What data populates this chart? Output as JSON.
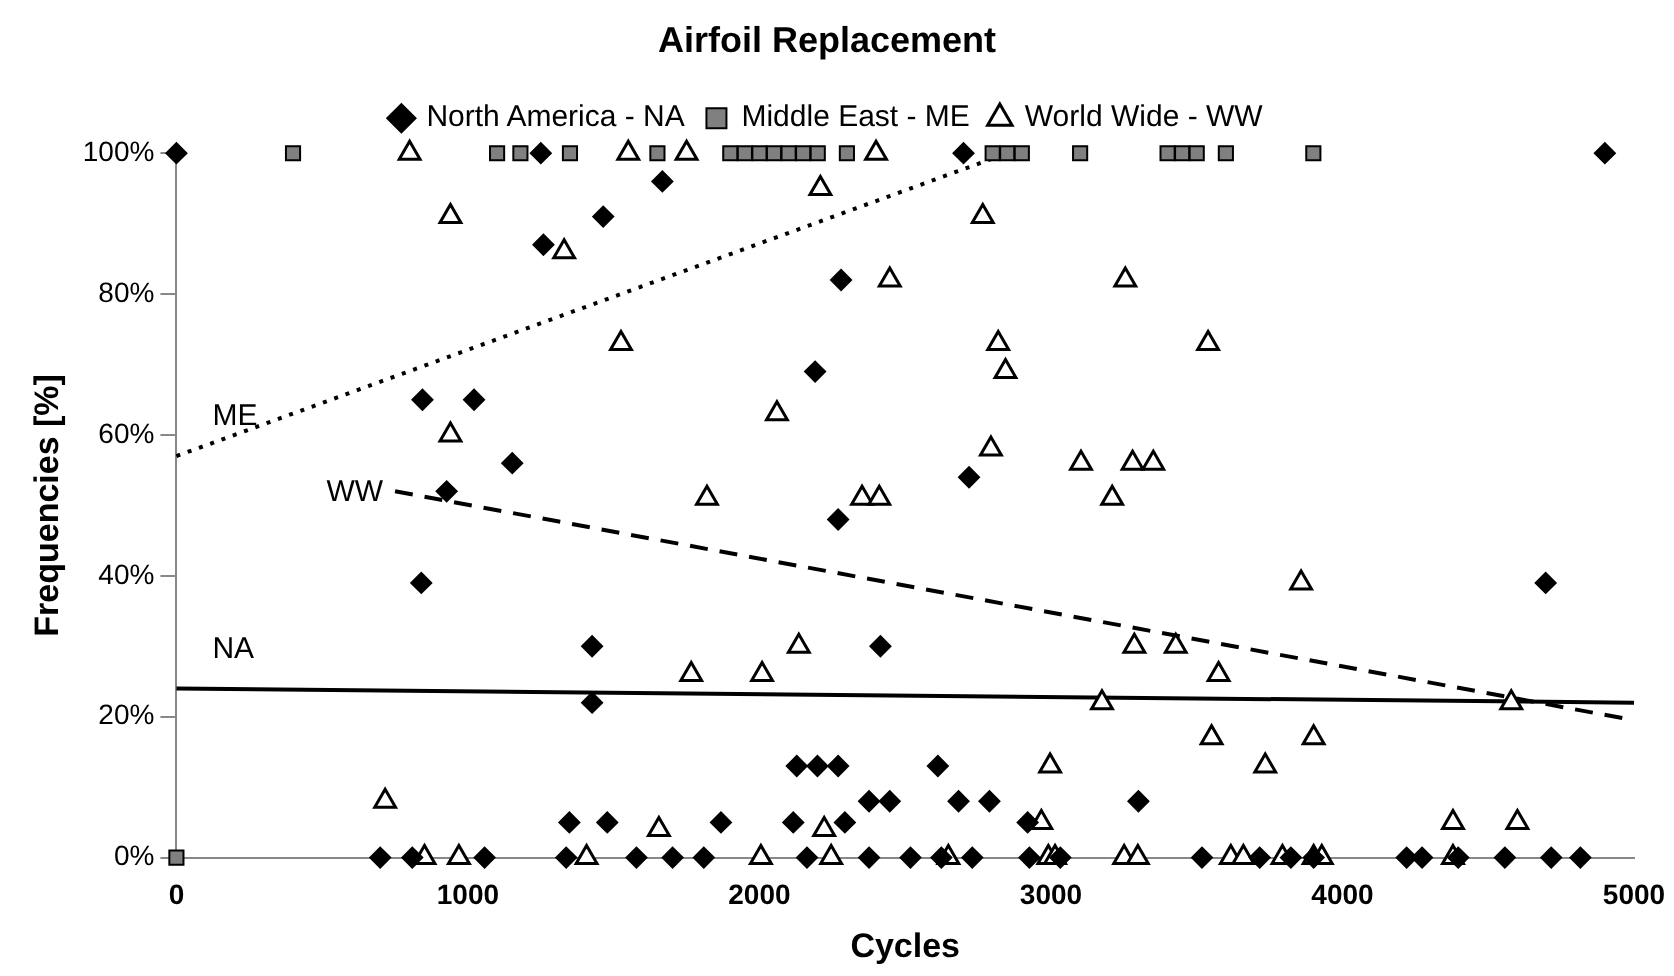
{
  "chart_data": {
    "type": "scatter",
    "title": "Airfoil Replacement",
    "xlabel": "Cycles",
    "ylabel": "Frequencies [%]",
    "xlim": [
      0,
      5000
    ],
    "xticks": [
      0,
      1000,
      2000,
      3000,
      4000,
      5000
    ],
    "ylim": [
      0,
      100
    ],
    "yticks": [
      {
        "value": 0,
        "label": "0%"
      },
      {
        "value": 20,
        "label": "20%"
      },
      {
        "value": 40,
        "label": "40%"
      },
      {
        "value": 60,
        "label": "60%"
      },
      {
        "value": 80,
        "label": "80%"
      },
      {
        "value": 100,
        "label": "100%"
      }
    ],
    "grid": false,
    "legend": "top",
    "series": [
      {
        "name": "North America - NA",
        "color": "#000000",
        "marker": "diamond",
        "x": [
          0,
          1250,
          2700,
          4900,
          1667,
          1464,
          1259,
          2280,
          2191,
          844,
          1021,
          1152,
          927,
          2270,
          840,
          1426,
          1426,
          2415,
          4697,
          2719,
          2128,
          2199,
          2270,
          2612,
          1348,
          1478,
          1868,
          2116,
          2293,
          2376,
          2447,
          2683,
          2789,
          2920,
          3300,
          699,
          809,
          1057,
          1337,
          1578,
          1702,
          1809,
          2163,
          2376,
          2518,
          2624,
          2730,
          2926,
          3032,
          3518,
          3716,
          3823,
          3901,
          4220,
          4273,
          4397,
          4557,
          4716,
          4816
        ],
        "values": [
          100,
          100,
          100,
          100,
          96,
          91,
          87,
          82,
          69,
          65,
          65,
          56,
          52,
          48,
          39,
          30,
          22,
          30,
          39,
          54,
          13,
          13,
          13,
          13,
          5,
          5,
          5,
          5,
          5,
          8,
          8,
          8,
          8,
          5,
          8,
          0,
          0,
          0,
          0,
          0,
          0,
          0,
          0,
          0,
          0,
          0,
          0,
          0,
          0,
          0,
          0,
          0,
          0,
          0,
          0,
          0,
          0,
          0,
          0
        ]
      },
      {
        "name": "Middle East - ME",
        "color": "#808080",
        "marker": "square",
        "x": [
          0,
          400,
          1100,
          1180,
          1350,
          1650,
          1900,
          1950,
          2000,
          2050,
          2100,
          2150,
          2200,
          2300,
          2800,
          2850,
          2900,
          3100,
          3400,
          3450,
          3500,
          3600,
          3900
        ],
        "values": [
          0,
          100,
          100,
          100,
          100,
          100,
          100,
          100,
          100,
          100,
          100,
          100,
          100,
          100,
          100,
          100,
          100,
          100,
          100,
          100,
          100,
          100,
          100
        ]
      },
      {
        "name": "World Wide - WW",
        "color": "#000000",
        "marker": "triangle",
        "x": [
          800,
          1550,
          1750,
          2400,
          940,
          1330,
          1525,
          2209,
          2766,
          2447,
          3255,
          2819,
          2844,
          3539,
          940,
          2060,
          2794,
          3103,
          3280,
          3351,
          1820,
          2352,
          2411,
          3210,
          716,
          1766,
          2009,
          2135,
          3858,
          3286,
          3428,
          3575,
          3175,
          4579,
          3551,
          3901,
          3735,
          2997,
          1655,
          2222,
          2967,
          4379,
          4600,
          851,
          969,
          1407,
          2005,
          2246,
          2648,
          2991,
          3014,
          3251,
          3617,
          3794,
          3901,
          3298,
          3660,
          3929,
          4379
        ],
        "values": [
          100,
          100,
          100,
          100,
          91,
          86,
          73,
          95,
          91,
          82,
          82,
          73,
          69,
          73,
          60,
          63,
          58,
          56,
          56,
          56,
          51,
          51,
          51,
          51,
          8,
          26,
          26,
          30,
          39,
          30,
          30,
          26,
          22,
          22,
          17,
          17,
          13,
          13,
          4,
          4,
          5,
          5,
          5,
          0,
          0,
          0,
          0,
          0,
          0,
          0,
          0,
          0,
          0,
          0,
          0,
          0,
          0,
          0,
          0
        ]
      },
      {
        "name": "ME",
        "type": "line",
        "color": "#000000",
        "line_style": "dotted",
        "marker": "none",
        "x": [
          0,
          2850
        ],
        "values": [
          57,
          100
        ]
      },
      {
        "name": "WW",
        "type": "line",
        "color": "#000000",
        "line_style": "dashed",
        "marker": "none",
        "x": [
          750,
          5000
        ],
        "values": [
          52,
          19.5
        ]
      },
      {
        "name": "NA",
        "type": "line",
        "color": "#000000",
        "line_style": "solid",
        "marker": "none",
        "x": [
          0,
          5000
        ],
        "values": [
          24,
          22
        ]
      }
    ]
  }
}
